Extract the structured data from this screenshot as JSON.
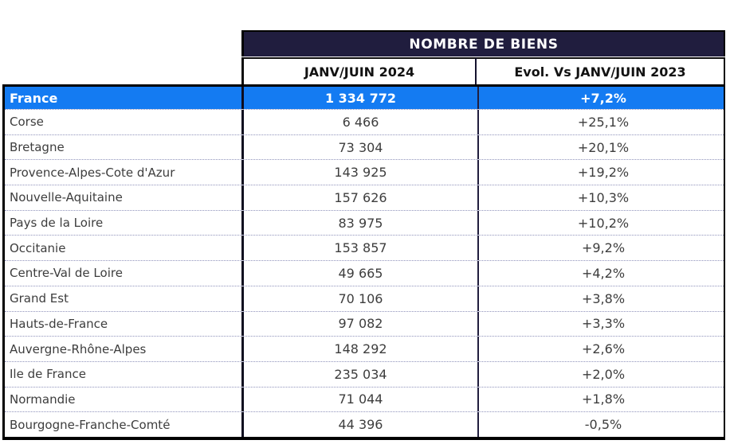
{
  "chart_data": {
    "type": "table",
    "title": "NOMBRE DE BIENS",
    "columns": [
      "JANV/JUIN 2024",
      "Evol. Vs JANV/JUIN 2023"
    ],
    "total_row": {
      "label": "France",
      "count": "1 334 772",
      "evol": "+7,2%"
    },
    "rows": [
      {
        "label": "Corse",
        "count": "6 466",
        "evol": "+25,1%"
      },
      {
        "label": "Bretagne",
        "count": "73 304",
        "evol": "+20,1%"
      },
      {
        "label": "Provence-Alpes-Cote d'Azur",
        "count": "143 925",
        "evol": "+19,2%"
      },
      {
        "label": "Nouvelle-Aquitaine",
        "count": "157 626",
        "evol": "+10,3%"
      },
      {
        "label": "Pays de la Loire",
        "count": "83 975",
        "evol": "+10,2%"
      },
      {
        "label": "Occitanie",
        "count": "153 857",
        "evol": "+9,2%"
      },
      {
        "label": "Centre-Val de Loire",
        "count": "49 665",
        "evol": "+4,2%"
      },
      {
        "label": "Grand Est",
        "count": "70 106",
        "evol": "+3,8%"
      },
      {
        "label": "Hauts-de-France",
        "count": "97 082",
        "evol": "+3,3%"
      },
      {
        "label": "Auvergne-Rhône-Alpes",
        "count": "148 292",
        "evol": "+2,6%"
      },
      {
        "label": "Ile de France",
        "count": "235 034",
        "evol": "+2,0%"
      },
      {
        "label": "Normandie",
        "count": "71 044",
        "evol": "+1,8%"
      },
      {
        "label": "Bourgogne-Franche-Comté",
        "count": "44 396",
        "evol": "-0,5%"
      }
    ]
  },
  "colors": {
    "header_navy": "#201d3e",
    "highlight_blue": "#147bf2",
    "body_text": "#3d3d3d",
    "row_divider": "#9093bb"
  }
}
